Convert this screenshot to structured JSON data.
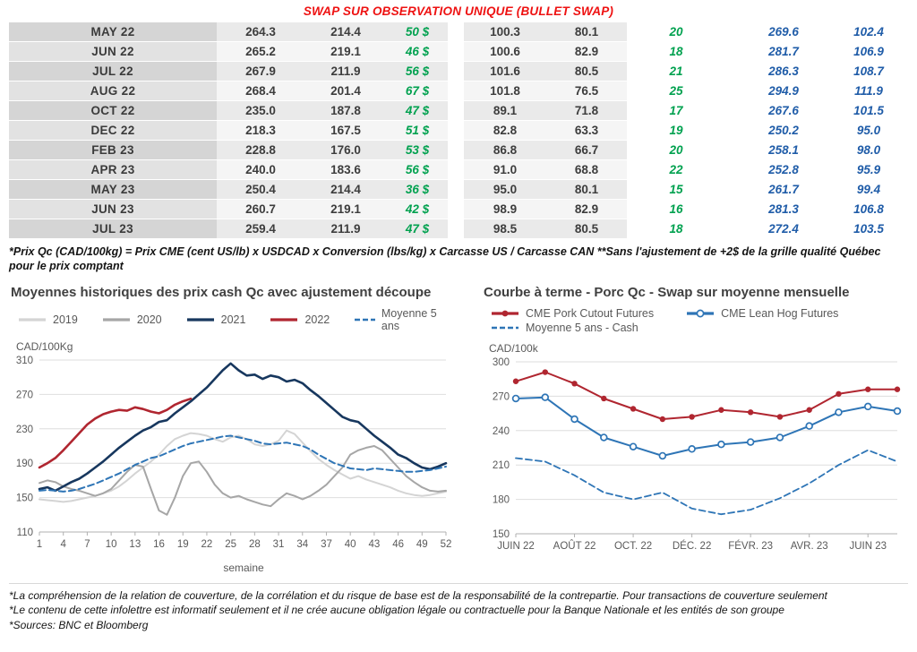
{
  "title": "SWAP SUR OBSERVATION UNIQUE (BULLET SWAP)",
  "colors": {
    "title_red": "#ee1111",
    "green": "#00a14f",
    "blue": "#1f5ca8",
    "line_red": "#b02630",
    "line_navy": "#17375e",
    "line_blue": "#2e75b6",
    "line_gray": "#a6a6a6",
    "line_lightgray": "#d4d4d4"
  },
  "table": {
    "rows": [
      [
        "MAY 22",
        "264.3",
        "214.4",
        "50 $",
        "100.3",
        "80.1",
        "20",
        "269.6",
        "102.4"
      ],
      [
        "JUN 22",
        "265.2",
        "219.1",
        "46 $",
        "100.6",
        "82.9",
        "18",
        "281.7",
        "106.9"
      ],
      [
        "JUL 22",
        "267.9",
        "211.9",
        "56 $",
        "101.6",
        "80.5",
        "21",
        "286.3",
        "108.7"
      ],
      [
        "AUG 22",
        "268.4",
        "201.4",
        "67 $",
        "101.8",
        "76.5",
        "25",
        "294.9",
        "111.9"
      ],
      [
        "OCT 22",
        "235.0",
        "187.8",
        "47 $",
        "89.1",
        "71.8",
        "17",
        "267.6",
        "101.5"
      ],
      [
        "DEC 22",
        "218.3",
        "167.5",
        "51 $",
        "82.8",
        "63.3",
        "19",
        "250.2",
        "95.0"
      ],
      [
        "FEB 23",
        "228.8",
        "176.0",
        "53 $",
        "86.8",
        "66.7",
        "20",
        "258.1",
        "98.0"
      ],
      [
        "APR 23",
        "240.0",
        "183.6",
        "56 $",
        "91.0",
        "68.8",
        "22",
        "252.8",
        "95.9"
      ],
      [
        "MAY 23",
        "250.4",
        "214.4",
        "36 $",
        "95.0",
        "80.1",
        "15",
        "261.7",
        "99.4"
      ],
      [
        "JUN 23",
        "260.7",
        "219.1",
        "42 $",
        "98.9",
        "82.9",
        "16",
        "281.3",
        "106.8"
      ],
      [
        "JUL 23",
        "259.4",
        "211.9",
        "47 $",
        "98.5",
        "80.5",
        "18",
        "272.4",
        "103.5"
      ]
    ]
  },
  "table_note": "*Prix Qc (CAD/100kg) = Prix CME (cent US/lb) x USDCAD x Conversion (lbs/kg) x Carcasse US / Carcasse CAN **Sans l'ajustement de +2$ de la grille qualité Québec pour le prix comptant",
  "chart_data": [
    {
      "type": "line",
      "title": "Moyennes historiques des prix cash Qc avec ajustement découpe",
      "ylabel": "CAD/100Kg",
      "xlabel": "semaine",
      "ylim": [
        110,
        310
      ],
      "yticks": [
        110,
        150,
        190,
        230,
        270,
        310
      ],
      "x_range": [
        1,
        52
      ],
      "xticks": [
        1,
        4,
        7,
        10,
        13,
        16,
        19,
        22,
        25,
        28,
        31,
        34,
        37,
        40,
        43,
        46,
        49,
        52
      ],
      "grid": true,
      "legend_position": "top",
      "series": [
        {
          "name": "2019",
          "color": "#d4d4d4",
          "width": 2,
          "values": [
            148,
            147,
            146,
            145,
            146,
            148,
            150,
            152,
            155,
            158,
            163,
            170,
            178,
            185,
            192,
            200,
            210,
            218,
            222,
            225,
            224,
            222,
            218,
            215,
            220,
            222,
            218,
            212,
            210,
            212,
            216,
            228,
            224,
            214,
            204,
            195,
            188,
            182,
            177,
            172,
            175,
            171,
            168,
            165,
            162,
            158,
            155,
            153,
            152,
            153,
            155,
            157
          ]
        },
        {
          "name": "2020",
          "color": "#a6a6a6",
          "width": 2,
          "values": [
            167,
            170,
            168,
            163,
            160,
            158,
            155,
            152,
            155,
            160,
            170,
            180,
            188,
            186,
            160,
            135,
            130,
            150,
            175,
            190,
            192,
            180,
            165,
            155,
            150,
            152,
            148,
            145,
            142,
            140,
            148,
            155,
            152,
            148,
            152,
            158,
            165,
            175,
            185,
            200,
            205,
            208,
            210,
            205,
            195,
            185,
            175,
            168,
            162,
            158,
            157,
            158
          ]
        },
        {
          "name": "2021",
          "color": "#17375e",
          "width": 2.6,
          "values": [
            160,
            162,
            158,
            163,
            168,
            172,
            178,
            185,
            192,
            200,
            208,
            215,
            222,
            228,
            232,
            238,
            240,
            248,
            255,
            262,
            270,
            278,
            288,
            298,
            306,
            298,
            292,
            293,
            288,
            292,
            290,
            285,
            287,
            283,
            275,
            268,
            260,
            252,
            244,
            240,
            238,
            230,
            222,
            215,
            208,
            200,
            196,
            190,
            185,
            183,
            186,
            190
          ]
        },
        {
          "name": "2022",
          "color": "#b02630",
          "width": 2.6,
          "values": [
            185,
            190,
            196,
            205,
            215,
            225,
            235,
            242,
            247,
            250,
            252,
            251,
            255,
            253,
            250,
            248,
            252,
            258,
            262,
            265
          ]
        },
        {
          "name": "Moyenne 5 ans",
          "color": "#2e75b6",
          "width": 2,
          "dash": true,
          "values": [
            158,
            159,
            158,
            157,
            158,
            160,
            163,
            166,
            170,
            174,
            178,
            183,
            188,
            192,
            196,
            198,
            202,
            206,
            210,
            213,
            215,
            217,
            219,
            221,
            222,
            220,
            218,
            216,
            213,
            212,
            213,
            214,
            212,
            210,
            206,
            200,
            195,
            190,
            187,
            184,
            183,
            182,
            184,
            183,
            182,
            181,
            180,
            180,
            181,
            182,
            184,
            186
          ]
        }
      ]
    },
    {
      "type": "line",
      "title": "Courbe à terme - Porc Qc - Swap sur moyenne mensuelle",
      "ylabel": "CAD/100k",
      "xlabel": "",
      "ylim": [
        150,
        300
      ],
      "yticks": [
        150,
        180,
        210,
        240,
        270,
        300
      ],
      "n_points": 14,
      "xticks": [
        {
          "i": 0,
          "label": "JUIN 22"
        },
        {
          "i": 2,
          "label": "AOÛT 22"
        },
        {
          "i": 4,
          "label": "OCT. 22"
        },
        {
          "i": 6,
          "label": "DÉC. 22"
        },
        {
          "i": 8,
          "label": "FÉVR. 23"
        },
        {
          "i": 10,
          "label": "AVR. 23"
        },
        {
          "i": 12,
          "label": "JUIN 23"
        }
      ],
      "grid": true,
      "legend_position": "top",
      "series": [
        {
          "name": "CME Pork Cutout Futures",
          "color": "#b02630",
          "width": 2,
          "marker": "dot",
          "values": [
            283,
            291,
            281,
            268,
            259,
            250,
            252,
            258,
            256,
            252,
            258,
            272,
            276,
            276
          ]
        },
        {
          "name": "CME Lean Hog Futures",
          "color": "#2e75b6",
          "width": 2,
          "marker": "circle",
          "values": [
            268,
            269,
            250,
            234,
            226,
            218,
            224,
            228,
            230,
            234,
            244,
            256,
            261,
            257
          ]
        },
        {
          "name": "Moyenne 5 ans - Cash",
          "color": "#2e75b6",
          "width": 1.8,
          "dash": true,
          "values": [
            216,
            213,
            201,
            186,
            180,
            186,
            172,
            167,
            171,
            181,
            194,
            210,
            223,
            213
          ]
        }
      ]
    }
  ],
  "footnotes": [
    "*La compréhension de la relation de couverture, de la corrélation et du risque de base est de la responsabilité de la contrepartie. Pour transactions de couverture seulement",
    "*Le contenu de cette infolettre est informatif seulement et il ne crée aucune obligation légale ou contractuelle pour la Banque Nationale et les entités de son groupe",
    "*Sources: BNC et Bloomberg"
  ]
}
